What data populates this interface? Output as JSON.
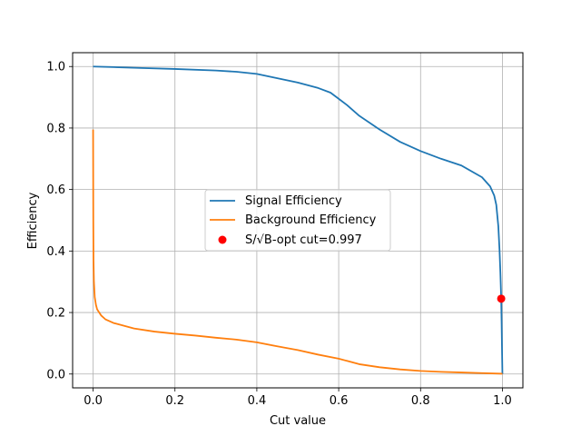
{
  "chart_data": {
    "type": "line",
    "title": "",
    "xlabel": "Cut value",
    "ylabel": "Efficiency",
    "xlim": [
      -0.05,
      1.05
    ],
    "ylim": [
      -0.045,
      1.045
    ],
    "xticks": [
      0.0,
      0.2,
      0.4,
      0.6,
      0.8,
      1.0
    ],
    "xtick_labels": [
      "0.0",
      "0.2",
      "0.4",
      "0.6",
      "0.8",
      "1.0"
    ],
    "yticks": [
      0.0,
      0.2,
      0.4,
      0.6,
      0.8,
      1.0
    ],
    "ytick_labels": [
      "0.0",
      "0.2",
      "0.4",
      "0.6",
      "0.8",
      "1.0"
    ],
    "grid": true,
    "legend_position": "center",
    "series": [
      {
        "name": "Signal Efficiency",
        "color": "#1f77b4",
        "x": [
          0.0,
          0.05,
          0.1,
          0.2,
          0.3,
          0.35,
          0.4,
          0.45,
          0.5,
          0.55,
          0.58,
          0.6,
          0.62,
          0.65,
          0.7,
          0.75,
          0.8,
          0.85,
          0.9,
          0.95,
          0.97,
          0.98,
          0.985,
          0.99,
          0.993,
          0.995,
          0.997,
          0.998,
          0.999,
          1.0
        ],
        "y": [
          1.0,
          0.998,
          0.996,
          0.992,
          0.987,
          0.983,
          0.976,
          0.962,
          0.948,
          0.93,
          0.915,
          0.895,
          0.875,
          0.84,
          0.795,
          0.755,
          0.725,
          0.7,
          0.678,
          0.64,
          0.61,
          0.58,
          0.55,
          0.48,
          0.4,
          0.33,
          0.245,
          0.17,
          0.08,
          0.0
        ]
      },
      {
        "name": "Background Efficiency",
        "color": "#ff7f0e",
        "x": [
          0.0,
          0.0005,
          0.001,
          0.002,
          0.004,
          0.007,
          0.01,
          0.02,
          0.03,
          0.05,
          0.1,
          0.15,
          0.2,
          0.25,
          0.3,
          0.35,
          0.4,
          0.45,
          0.5,
          0.55,
          0.6,
          0.65,
          0.7,
          0.75,
          0.8,
          0.85,
          0.9,
          0.95,
          1.0
        ],
        "y": [
          0.795,
          0.5,
          0.37,
          0.3,
          0.25,
          0.225,
          0.21,
          0.19,
          0.178,
          0.166,
          0.148,
          0.138,
          0.131,
          0.125,
          0.118,
          0.112,
          0.103,
          0.09,
          0.078,
          0.063,
          0.05,
          0.032,
          0.022,
          0.015,
          0.01,
          0.007,
          0.005,
          0.003,
          0.001
        ]
      }
    ],
    "markers": [
      {
        "name": "S/√B-opt cut=0.997",
        "color": "#ff0000",
        "x": 0.997,
        "y": 0.245
      }
    ]
  }
}
